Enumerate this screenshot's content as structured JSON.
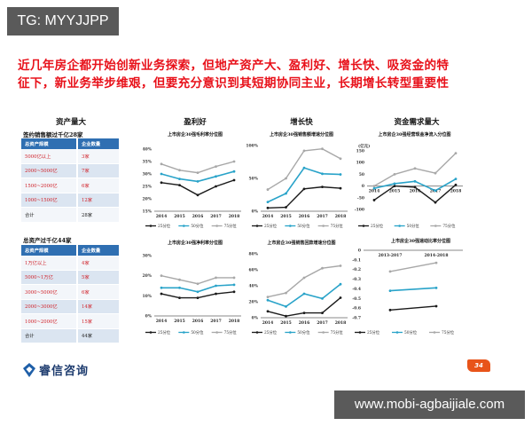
{
  "watermark_top": "TG: MYYJJPP",
  "watermark_bottom": "www.mobi-agbaijiale.com",
  "headline": {
    "line1": "近几年房企都开始创新业务探索，但地产资产大、盈利好、增长快、吸资金的特",
    "line2": "征下，新业务举步维艰，但要充分意识到其短期协同主业，长期增长转型重要性"
  },
  "colors": {
    "headline": "#e8111a",
    "table_header": "#2f6fb2",
    "p25": "#1a1a1a",
    "p50": "#29a3c9",
    "p75": "#a8a8a8",
    "page_badge": "#e8541a",
    "logo": "#1d3b6e"
  },
  "asset_section": {
    "title": "资产量大",
    "table1": {
      "caption": "签约销售额过千亿28家",
      "headers": [
        "总资产规模",
        "企业数量"
      ],
      "rows": [
        [
          "5000亿以上",
          "3家"
        ],
        [
          "2000~5000亿",
          "7家"
        ],
        [
          "1500~2000亿",
          "6家"
        ],
        [
          "1000~1500亿",
          "12家"
        ],
        [
          "合计",
          "28家"
        ]
      ]
    },
    "table2": {
      "caption": "总资产过千亿44家",
      "headers": [
        "总资产规模",
        "企业数量"
      ],
      "rows": [
        [
          "1万亿以上",
          "4家"
        ],
        [
          "5000~1万亿",
          "5家"
        ],
        [
          "3000~5000亿",
          "6家"
        ],
        [
          "2000~3000亿",
          "14家"
        ],
        [
          "1000~2000亿",
          "15家"
        ],
        [
          "合计",
          "44家"
        ]
      ]
    }
  },
  "legend": {
    "p25": "25分位",
    "p50": "50分位",
    "p75": "75分位"
  },
  "chart_data": [
    {
      "type": "line",
      "section": "盈利好",
      "title": "上市房企30强毛利率分位图",
      "categories": [
        "2014",
        "2015",
        "2016",
        "2017",
        "2018"
      ],
      "series": [
        {
          "name": "25分位",
          "values": [
            26.5,
            25.5,
            21.5,
            25.0,
            27.5
          ]
        },
        {
          "name": "50分位",
          "values": [
            30.0,
            28.0,
            27.0,
            29.0,
            31.0
          ]
        },
        {
          "name": "75分位",
          "values": [
            34.0,
            31.5,
            30.5,
            33.0,
            35.0
          ]
        }
      ],
      "yticks": [
        "15%",
        "20%",
        "25%",
        "30%",
        "35%",
        "40%"
      ],
      "ylim": [
        15,
        40
      ]
    },
    {
      "type": "line",
      "section": "增长快",
      "title": "上市房企30强销售额增速分位图",
      "categories": [
        "2014",
        "2015",
        "2016",
        "2017",
        "2018"
      ],
      "series": [
        {
          "name": "25分位",
          "values": [
            5,
            6,
            34,
            37,
            35
          ]
        },
        {
          "name": "50分位",
          "values": [
            14,
            27,
            66,
            57,
            56
          ]
        },
        {
          "name": "75分位",
          "values": [
            33,
            50,
            92,
            95,
            80
          ]
        }
      ],
      "yticks": [
        "0%",
        "50%",
        "100%"
      ],
      "ylim": [
        0,
        100
      ]
    },
    {
      "type": "line",
      "section": "资金需求量大",
      "title": "上市房企30强经营现金净流入分位图",
      "categories": [
        "2014",
        "2015",
        "2016",
        "2017",
        "2018"
      ],
      "series": [
        {
          "name": "25分位",
          "values": [
            -60,
            0,
            -5,
            -70,
            5
          ]
        },
        {
          "name": "50分位",
          "values": [
            -10,
            10,
            20,
            -20,
            30
          ]
        },
        {
          "name": "75分位",
          "values": [
            0,
            50,
            75,
            55,
            140
          ]
        }
      ],
      "ylabel": "(亿元)",
      "yticks": [
        "-100",
        "-50",
        "0",
        "50",
        "100",
        "150"
      ],
      "ylim": [
        -100,
        150
      ]
    },
    {
      "type": "line",
      "title": "上市房企30强净利率分位图",
      "categories": [
        "2014",
        "2015",
        "2016",
        "2017",
        "2018"
      ],
      "series": [
        {
          "name": "25分位",
          "values": [
            11,
            9,
            9,
            11,
            12
          ]
        },
        {
          "name": "50分位",
          "values": [
            14,
            14,
            12,
            15,
            15.5
          ]
        },
        {
          "name": "75分位",
          "values": [
            20,
            18,
            16,
            19,
            19
          ]
        }
      ],
      "yticks": [
        "0%",
        "10%",
        "20%",
        "30%"
      ],
      "ylim": [
        0,
        30
      ]
    },
    {
      "type": "line",
      "title": "上市房企30强销售回款增速分位图",
      "categories": [
        "2014",
        "2015",
        "2016",
        "2017",
        "2018"
      ],
      "series": [
        {
          "name": "25分位",
          "values": [
            8,
            2,
            6,
            6,
            25
          ]
        },
        {
          "name": "50分位",
          "values": [
            22,
            14,
            30,
            24,
            42
          ]
        },
        {
          "name": "75分位",
          "values": [
            26,
            31,
            50,
            62,
            65
          ]
        }
      ],
      "yticks": [
        "0%",
        "20%",
        "40%",
        "60%",
        "80%"
      ],
      "ylim": [
        0,
        80
      ]
    },
    {
      "type": "line",
      "title": "上市房企30强速动比率分位图",
      "categories": [
        "2013-2017",
        "2014-2018"
      ],
      "series": [
        {
          "name": "25分位",
          "values": [
            -0.62,
            -0.58
          ]
        },
        {
          "name": "50分位",
          "values": [
            -0.42,
            -0.39
          ]
        },
        {
          "name": "75分位",
          "values": [
            -0.22,
            -0.13
          ]
        }
      ],
      "yticks": [
        "0",
        "-0.1",
        "-0.2",
        "-0.3",
        "-0.4",
        "-0.5",
        "-0.6",
        "-0.7"
      ],
      "ylim": [
        -0.7,
        0
      ]
    }
  ],
  "footer": {
    "logo_text": "睿信咨询",
    "page_number": "34"
  }
}
